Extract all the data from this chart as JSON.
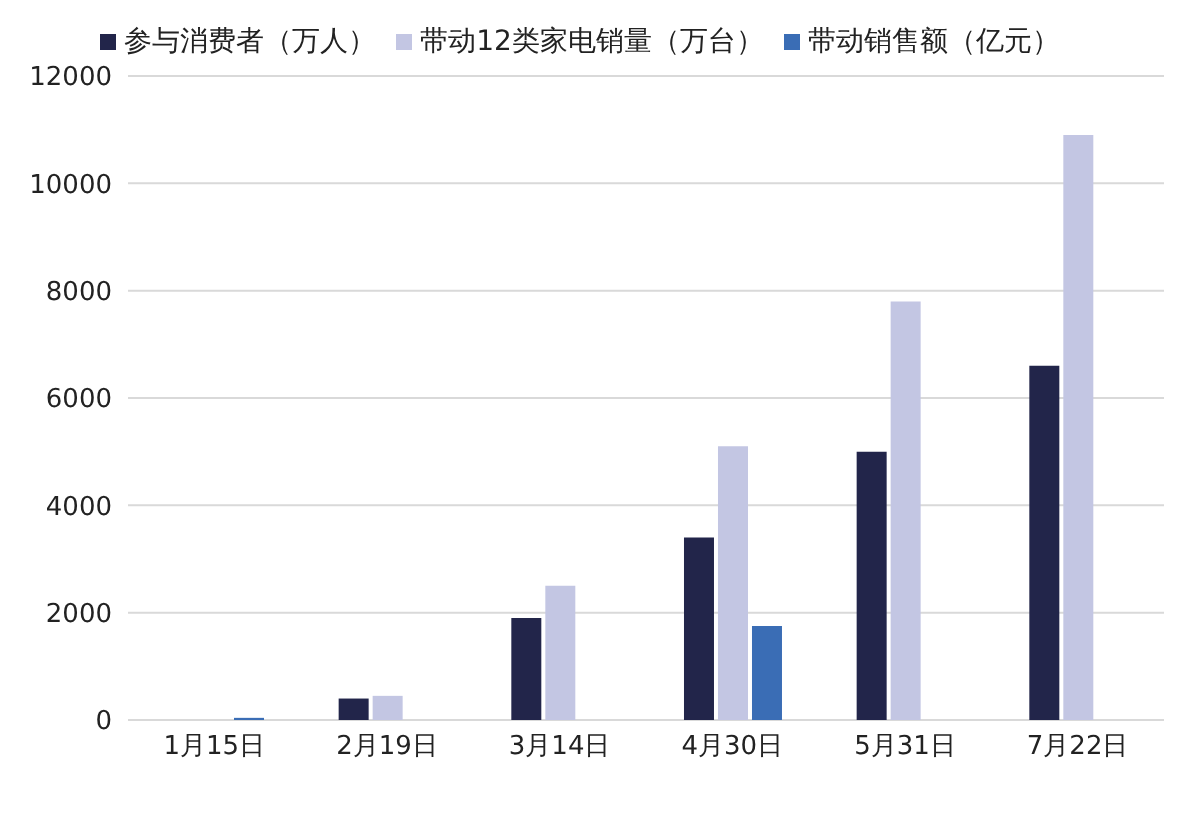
{
  "chart_data": {
    "type": "bar",
    "categories": [
      "1月15日",
      "2月19日",
      "3月14日",
      "4月30日",
      "5月31日",
      "7月22日"
    ],
    "series": [
      {
        "name": "参与消费者（万人）",
        "color": "#22254a",
        "values": [
          null,
          400,
          1900,
          3400,
          5000,
          6600
        ]
      },
      {
        "name": "带动12类家电销量（万台）",
        "color": "#c3c6e3",
        "values": [
          null,
          450,
          2500,
          5100,
          7800,
          10900
        ]
      },
      {
        "name": "带动销售额（亿元）",
        "color": "#3a6db5",
        "values": [
          40,
          null,
          null,
          1750,
          null,
          null
        ]
      }
    ],
    "ylim": [
      0,
      12000
    ],
    "yticks": [
      0,
      2000,
      4000,
      6000,
      8000,
      10000,
      12000
    ],
    "grid": "y",
    "legend": "top"
  }
}
